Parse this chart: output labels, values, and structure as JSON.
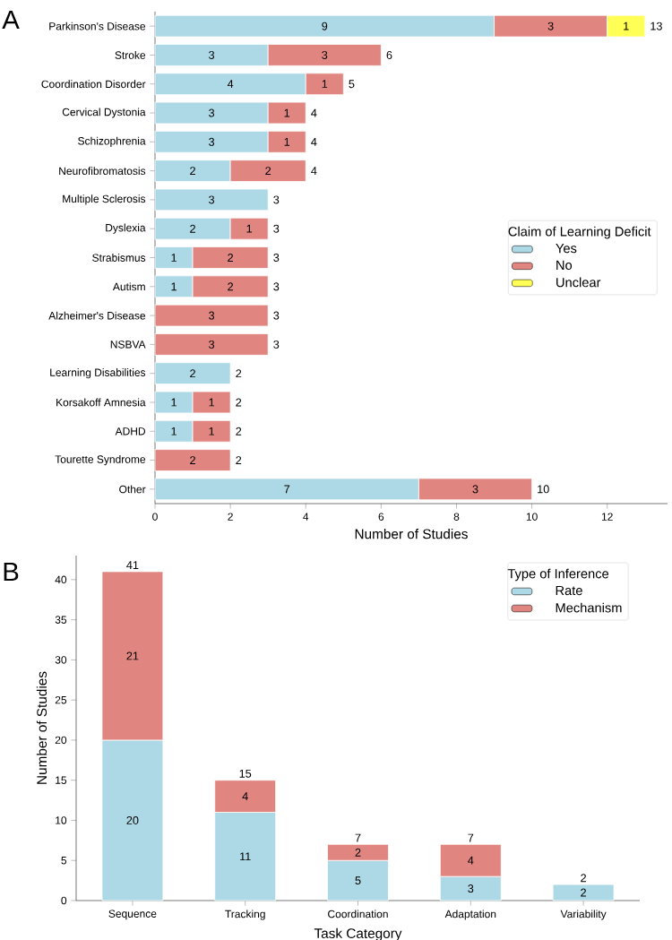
{
  "chart_data": [
    {
      "type": "bar",
      "title": "A",
      "orientation": "horizontal",
      "stacked": true,
      "data_labels": true,
      "categories": [
        "Parkinson's Disease",
        "Stroke",
        "Coordination Disorder",
        "Cervical Dystonia",
        "Schizophrenia",
        "Neurofibromatosis",
        "Multiple Sclerosis",
        "Dyslexia",
        "Strabismus",
        "Autism",
        "Alzheimer's Disease",
        "NSBVA",
        "Learning Disabilities",
        "Korsakoff Amnesia",
        "ADHD",
        "Tourette Syndrome",
        "Other"
      ],
      "series": [
        {
          "name": "Yes",
          "color": "#add8e6",
          "values": [
            9,
            3,
            4,
            3,
            3,
            2,
            3,
            2,
            1,
            1,
            null,
            null,
            2,
            1,
            1,
            null,
            7
          ]
        },
        {
          "name": "No",
          "color": "#e08580",
          "values": [
            3,
            3,
            1,
            1,
            1,
            2,
            null,
            1,
            2,
            2,
            3,
            3,
            null,
            1,
            1,
            2,
            3
          ]
        },
        {
          "name": "Unclear",
          "color": "#ffff55",
          "values": [
            1,
            null,
            null,
            null,
            null,
            null,
            null,
            null,
            null,
            null,
            null,
            null,
            null,
            null,
            null,
            null,
            null
          ]
        }
      ],
      "totals": [
        "13",
        "6",
        "5",
        "4",
        "4",
        "4",
        "3",
        "3",
        "3",
        "3",
        "3",
        "3",
        "2",
        "2",
        "2",
        "2",
        "10"
      ],
      "xlim": [
        0,
        13.6
      ],
      "xticks": [
        0,
        2,
        4,
        6,
        8,
        10,
        12
      ],
      "xlabel": "Number of Studies",
      "legend": "right",
      "legend_title": "Claim of Learning Deficit",
      "grid": false
    },
    {
      "type": "bar",
      "title": "B",
      "stacked": true,
      "data_labels": true,
      "categories": [
        "Sequence",
        "Tracking",
        "Coordination",
        "Adaptation",
        "Variability"
      ],
      "series": [
        {
          "name": "Rate",
          "color": "#add8e6",
          "values": [
            20,
            11,
            5,
            3,
            2
          ]
        },
        {
          "name": "Mechanism",
          "color": "#e08580",
          "values": [
            21,
            4,
            2,
            4,
            null
          ]
        }
      ],
      "totals": [
        "41",
        "15",
        "7",
        "7",
        "2"
      ],
      "ylim": [
        0,
        43
      ],
      "yticks": [
        0,
        5,
        10,
        15,
        20,
        25,
        30,
        35,
        40
      ],
      "xlabel": "Task Category",
      "ylabel": "Number of Studies",
      "legend": "top right",
      "legend_title": "Type of Inference",
      "grid": false
    }
  ]
}
